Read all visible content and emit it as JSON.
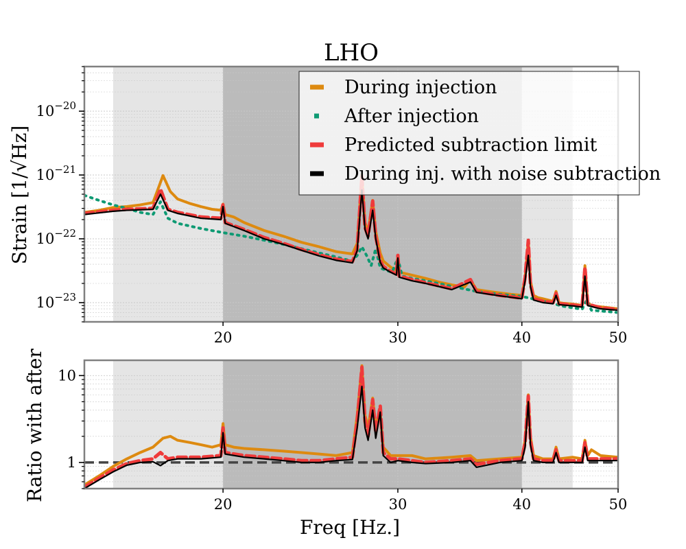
{
  "chart_data": [
    {
      "type": "line",
      "title": "LHO",
      "xlabel": "",
      "ylabel": "Strain [1/√Hz]",
      "xscale": "log",
      "yscale": "log",
      "xlim": [
        14.5,
        50
      ],
      "ylim": [
        5e-24,
        5e-20
      ],
      "xticks": [
        {
          "value": 20,
          "label": "20"
        },
        {
          "value": 30,
          "label": "30"
        },
        {
          "value": 40,
          "label": "40"
        },
        {
          "value": 50,
          "label": "50"
        }
      ],
      "yticks": [
        {
          "value": 1e-23,
          "base": "10",
          "exp": "−23"
        },
        {
          "value": 1e-22,
          "base": "10",
          "exp": "−22"
        },
        {
          "value": 1e-21,
          "base": "10",
          "exp": "−21"
        },
        {
          "value": 1e-20,
          "base": "10",
          "exp": "−20"
        }
      ],
      "grid": true,
      "legend_position": "top-right",
      "shaded_regions": [
        {
          "x": [
            15.5,
            45
          ],
          "color": "#e5e5e5"
        },
        {
          "x": [
            20,
            40
          ],
          "color": "#bbbbbb"
        }
      ],
      "series": [
        {
          "name": "During injection",
          "color": "#dd8a10",
          "style": "solid",
          "x": [
            14.5,
            15,
            15.5,
            16,
            16.5,
            17.0,
            17.2,
            17.4,
            17.7,
            18,
            18.5,
            19,
            19.5,
            19.9,
            20.0,
            20.1,
            20.5,
            21,
            22,
            23,
            24,
            25,
            26,
            27,
            27.3,
            27.6,
            27.8,
            28.0,
            28.3,
            28.5,
            28.8,
            29,
            29.5,
            29.9,
            30.0,
            30.1,
            31,
            32,
            33,
            34,
            35,
            35.5,
            36,
            37,
            38,
            39,
            40,
            40.3,
            40.6,
            40.8,
            41.1,
            41.5,
            42,
            42.5,
            43,
            43.3,
            43.6,
            44,
            45,
            45.5,
            46,
            46.3,
            46.6,
            47,
            48,
            49,
            50
          ],
          "y": [
            2.6e-22,
            2.8e-22,
            3.1e-22,
            3.2e-22,
            3.4e-22,
            3.7e-22,
            6e-22,
            9.8e-22,
            5.5e-22,
            4.2e-22,
            3.6e-22,
            3.2e-22,
            2.9e-22,
            2.8e-22,
            3.5e-22,
            2.4e-22,
            2.2e-22,
            1.8e-22,
            1.35e-22,
            1.1e-22,
            8.8e-23,
            7.5e-23,
            6.3e-23,
            5.8e-23,
            8.5e-23,
            1e-21,
            1.8e-22,
            1.3e-22,
            4e-22,
            1.3e-22,
            6e-23,
            4.5e-23,
            3.6e-23,
            3.2e-23,
            5.5e-23,
            3e-23,
            2.7e-23,
            2.4e-23,
            2.1e-23,
            1.9e-23,
            1.75e-23,
            2.3e-23,
            1.6e-23,
            1.5e-23,
            1.42e-23,
            1.35e-23,
            1.3e-23,
            2.5e-23,
            9.5e-23,
            2.2e-23,
            1.3e-23,
            1.2e-23,
            1.15e-23,
            1.1e-23,
            1.05e-23,
            1.5e-23,
            1e-23,
            9.8e-24,
            9.5e-24,
            9.3e-24,
            9e-24,
            3.8e-23,
            1e-23,
            9e-24,
            8.6e-24,
            8.3e-24,
            8e-24
          ]
        },
        {
          "name": "After injection",
          "color": "#0e9a73",
          "style": "dotted",
          "x": [
            14.5,
            15,
            15.5,
            16,
            16.5,
            17.0,
            17.3,
            17.6,
            18,
            19,
            20,
            21,
            22,
            23,
            24,
            25,
            26,
            26.5,
            27,
            27.3,
            27.6,
            27.9,
            28.2,
            28.5,
            28.8,
            29.2,
            29.6,
            30.0,
            30.3,
            31,
            32,
            34,
            36,
            38,
            40,
            41,
            42,
            43,
            43.5,
            44,
            45,
            46,
            46.5,
            47,
            48,
            50
          ],
          "y": [
            4.8e-22,
            4e-22,
            3.4e-22,
            3e-22,
            2.6e-22,
            2.4e-22,
            3.8e-22,
            2.1e-22,
            1.75e-22,
            1.45e-22,
            1.25e-22,
            1.1e-22,
            9.5e-23,
            8.2e-23,
            7e-23,
            6e-23,
            5.2e-23,
            4.8e-23,
            4.5e-23,
            5.5e-23,
            7.5e-23,
            5.5e-23,
            3.8e-23,
            7e-23,
            3.5e-23,
            3.2e-23,
            3e-23,
            5e-23,
            2.6e-23,
            2.4e-23,
            2.2e-23,
            1.8e-23,
            1.5e-23,
            1.35e-23,
            1.25e-23,
            1.15e-23,
            1.05e-23,
            9.8e-24,
            9.2e-24,
            8.8e-24,
            8.3e-24,
            7.9e-24,
            1.1e-23,
            7.6e-24,
            7.4e-24,
            7e-24
          ]
        },
        {
          "name": "Predicted subtraction limit",
          "color": "#ef3b3b",
          "style": "dashed",
          "x": [
            14.5,
            15,
            15.5,
            16,
            16.5,
            17.0,
            17.3,
            17.6,
            18,
            19,
            19.9,
            20.0,
            20.1,
            21,
            22,
            23,
            24,
            25,
            26,
            27,
            27.3,
            27.6,
            27.8,
            28.0,
            28.3,
            28.5,
            28.8,
            29,
            29.5,
            29.9,
            30.0,
            30.1,
            31,
            32,
            34,
            35.5,
            36,
            38,
            40,
            40.3,
            40.6,
            40.8,
            41.1,
            42,
            43,
            43.3,
            43.6,
            45,
            46,
            46.3,
            46.6,
            48,
            50
          ],
          "y": [
            2.5e-22,
            2.65e-22,
            2.8e-22,
            2.9e-22,
            2.95e-22,
            3e-22,
            6e-22,
            2.9e-22,
            2.6e-22,
            2.2e-22,
            2.1e-22,
            3.5e-22,
            1.8e-22,
            1.4e-22,
            1.05e-22,
            8.5e-23,
            6.8e-23,
            5.6e-23,
            4.8e-23,
            4.4e-23,
            7e-23,
            9.5e-22,
            1.5e-22,
            1.1e-22,
            3.9e-22,
            1.1e-22,
            4.5e-23,
            3.7e-23,
            3.1e-23,
            2.8e-23,
            5.5e-23,
            2.6e-23,
            2.3e-23,
            2.05e-23,
            1.65e-23,
            2.3e-23,
            1.5e-23,
            1.3e-23,
            1.18e-23,
            2.5e-23,
            9.5e-23,
            2e-23,
            1.15e-23,
            1.05e-23,
            1e-23,
            1.4e-23,
            9.6e-24,
            9.2e-24,
            8.8e-24,
            3.6e-23,
            9.5e-24,
            8.3e-24,
            7.8e-24
          ]
        },
        {
          "name": "During inj. with noise subtraction",
          "color": "#000000",
          "style": "solid",
          "x": [
            14.5,
            15,
            15.5,
            16,
            16.5,
            17.0,
            17.3,
            17.6,
            18,
            19,
            19.9,
            20.0,
            20.1,
            21,
            22,
            23,
            24,
            25,
            26,
            27,
            27.3,
            27.6,
            27.8,
            28.0,
            28.3,
            28.5,
            28.8,
            29,
            29.5,
            29.9,
            30.0,
            30.1,
            31,
            32,
            34,
            35.5,
            36,
            38,
            40,
            40.3,
            40.6,
            40.8,
            41.1,
            42,
            43,
            43.3,
            43.6,
            45,
            46,
            46.3,
            46.6,
            48,
            50
          ],
          "y": [
            2.4e-22,
            2.55e-22,
            2.7e-22,
            2.8e-22,
            2.85e-22,
            2.9e-22,
            5e-22,
            2.8e-22,
            2.5e-22,
            2.1e-22,
            2e-22,
            3.2e-22,
            1.75e-22,
            1.35e-22,
            1e-22,
            8.2e-23,
            6.6e-23,
            5.4e-23,
            4.6e-23,
            4.2e-23,
            6.5e-23,
            5.8e-22,
            1.4e-22,
            1e-22,
            2.8e-22,
            1e-22,
            4.3e-23,
            3.5e-23,
            3e-23,
            2.7e-23,
            5e-23,
            2.5e-23,
            2.2e-23,
            2e-23,
            1.6e-23,
            2.1e-23,
            1.45e-23,
            1.28e-23,
            1.15e-23,
            2.2e-23,
            5.5e-23,
            1.8e-23,
            1.1e-23,
            1e-23,
            9.6e-24,
            1.3e-23,
            9.3e-24,
            8.9e-24,
            8.5e-24,
            2.6e-23,
            9e-24,
            8e-24,
            7.6e-24
          ]
        }
      ]
    },
    {
      "type": "line",
      "title": "",
      "xlabel": "Freq [Hz.]",
      "ylabel": "Ratio with after",
      "xscale": "log",
      "yscale": "log",
      "xlim": [
        14.5,
        50
      ],
      "ylim": [
        0.5,
        15
      ],
      "xticks": [
        {
          "value": 20,
          "label": "20"
        },
        {
          "value": 30,
          "label": "30"
        },
        {
          "value": 40,
          "label": "40"
        },
        {
          "value": 50,
          "label": "50"
        }
      ],
      "yticks": [
        {
          "value": 1,
          "label": "1"
        },
        {
          "value": 10,
          "label": "10"
        }
      ],
      "grid": true,
      "reference_line": {
        "y": 1,
        "color": "#444444",
        "style": "dashed"
      },
      "shaded_regions": [
        {
          "x": [
            15.5,
            45
          ],
          "color": "#e5e5e5"
        },
        {
          "x": [
            20,
            40
          ],
          "color": "#bbbbbb"
        }
      ],
      "series": [
        {
          "name": "During injection",
          "color": "#dd8a10",
          "style": "solid",
          "x": [
            14.5,
            15,
            15.5,
            16,
            16.5,
            17,
            17.4,
            17.7,
            18,
            18.5,
            19,
            19.5,
            19.9,
            20.0,
            20.1,
            20.5,
            21,
            22,
            23,
            24,
            25,
            26,
            27,
            27.3,
            27.6,
            27.8,
            28.0,
            28.3,
            28.5,
            28.8,
            29,
            29.5,
            30,
            31,
            32,
            34,
            35.5,
            36,
            38,
            40,
            40.3,
            40.6,
            40.8,
            41.1,
            42,
            43,
            43.3,
            43.6,
            45,
            46,
            46.3,
            46.6,
            47,
            48,
            50
          ],
          "y": [
            0.55,
            0.7,
            0.9,
            1.1,
            1.3,
            1.5,
            1.9,
            2.0,
            1.8,
            1.7,
            1.6,
            1.5,
            1.6,
            2.8,
            1.6,
            1.5,
            1.45,
            1.4,
            1.35,
            1.3,
            1.25,
            1.2,
            1.3,
            3.5,
            13,
            3.5,
            2.5,
            5.5,
            2.6,
            3.8,
            1.5,
            1.2,
            1.2,
            1.2,
            1.1,
            1.15,
            1.2,
            1.05,
            1.1,
            1.15,
            1.8,
            6.0,
            2.0,
            1.2,
            1.1,
            1.1,
            1.5,
            1.1,
            1.15,
            1.1,
            1.8,
            1.2,
            1.4,
            1.2,
            1.15
          ]
        },
        {
          "name": "Predicted subtraction limit",
          "color": "#ef3b3b",
          "style": "dashed",
          "x": [
            14.5,
            15,
            15.5,
            16,
            16.5,
            17,
            17.3,
            17.6,
            18,
            19,
            19.9,
            20.0,
            20.1,
            21,
            22,
            23,
            24,
            25,
            26,
            27,
            27.3,
            27.6,
            27.8,
            28.0,
            28.3,
            28.5,
            28.8,
            29,
            29.5,
            30,
            31,
            32,
            34,
            35.5,
            36,
            38,
            40,
            40.3,
            40.6,
            40.8,
            41.1,
            42,
            43,
            43.3,
            43.6,
            45,
            46,
            46.3,
            46.6,
            48,
            50
          ],
          "y": [
            0.52,
            0.66,
            0.82,
            0.97,
            1.05,
            1.1,
            1.3,
            1.1,
            1.15,
            1.15,
            1.2,
            2.5,
            1.3,
            1.2,
            1.15,
            1.1,
            1.05,
            1.05,
            1.1,
            1.15,
            3,
            12.5,
            3,
            2,
            5.3,
            2.2,
            4.5,
            1.3,
            1.1,
            1.1,
            1.05,
            1.0,
            1.05,
            1.1,
            0.95,
            1.05,
            1.1,
            1.7,
            5.8,
            1.8,
            1.1,
            1.05,
            1.05,
            1.4,
            1.05,
            1.05,
            1.05,
            1.7,
            1.1,
            1.1,
            1.1
          ]
        },
        {
          "name": "During inj. with noise subtraction",
          "color": "#000000",
          "style": "solid",
          "x": [
            14.5,
            15,
            15.5,
            16,
            16.5,
            17,
            17.3,
            17.6,
            18,
            19,
            19.9,
            20.0,
            20.1,
            21,
            22,
            23,
            24,
            25,
            26,
            27,
            27.3,
            27.6,
            27.8,
            28.0,
            28.3,
            28.5,
            28.8,
            29,
            29.5,
            30,
            31,
            32,
            34,
            35.5,
            36,
            38,
            40,
            40.3,
            40.6,
            40.8,
            41.1,
            42,
            43,
            43.3,
            43.6,
            45,
            46,
            46.3,
            46.6,
            48,
            50
          ],
          "y": [
            0.5,
            0.63,
            0.78,
            0.93,
            1.0,
            1.02,
            0.92,
            1.05,
            1.1,
            1.1,
            1.15,
            2.2,
            1.25,
            1.15,
            1.1,
            1.05,
            1.0,
            1.0,
            1.05,
            1.08,
            2.5,
            7.5,
            2.5,
            1.8,
            4.0,
            1.9,
            3.8,
            1.2,
            1.0,
            1.05,
            1.0,
            0.97,
            1.0,
            1.05,
            0.88,
            1.0,
            1.05,
            1.5,
            5.0,
            1.6,
            1.05,
            1.0,
            1.0,
            1.3,
            1.0,
            1.0,
            1.0,
            1.5,
            1.05,
            1.05,
            1.05
          ]
        }
      ]
    }
  ]
}
